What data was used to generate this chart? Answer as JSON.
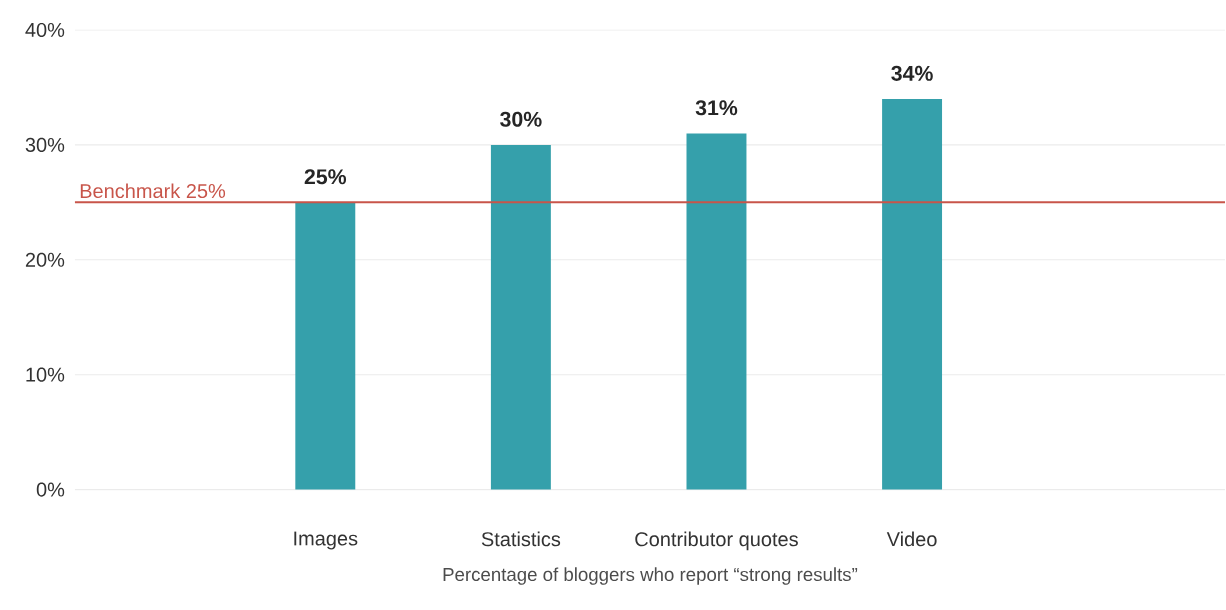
{
  "chart_data": {
    "type": "bar",
    "xlabel": "Percentage of bloggers who report “strong results”",
    "categories": [
      "Images",
      "Statistics",
      "Contributor quotes",
      "Video"
    ],
    "values": [
      25,
      30,
      31,
      34
    ],
    "value_labels": [
      "25%",
      "30%",
      "31%",
      "34%"
    ],
    "color": "#35a0ab",
    "ylim": [
      0,
      40
    ],
    "yticks": [
      {
        "value": 0,
        "label": "0%"
      },
      {
        "value": 10,
        "label": "10%"
      },
      {
        "value": 20,
        "label": "20%"
      },
      {
        "value": 30,
        "label": "30%"
      },
      {
        "value": 40,
        "label": "40%"
      }
    ],
    "grid": "y",
    "ref_lines": [
      {
        "axis": "y",
        "value": 25,
        "label": "Benchmark 25%",
        "color": "#c8554a"
      }
    ]
  }
}
